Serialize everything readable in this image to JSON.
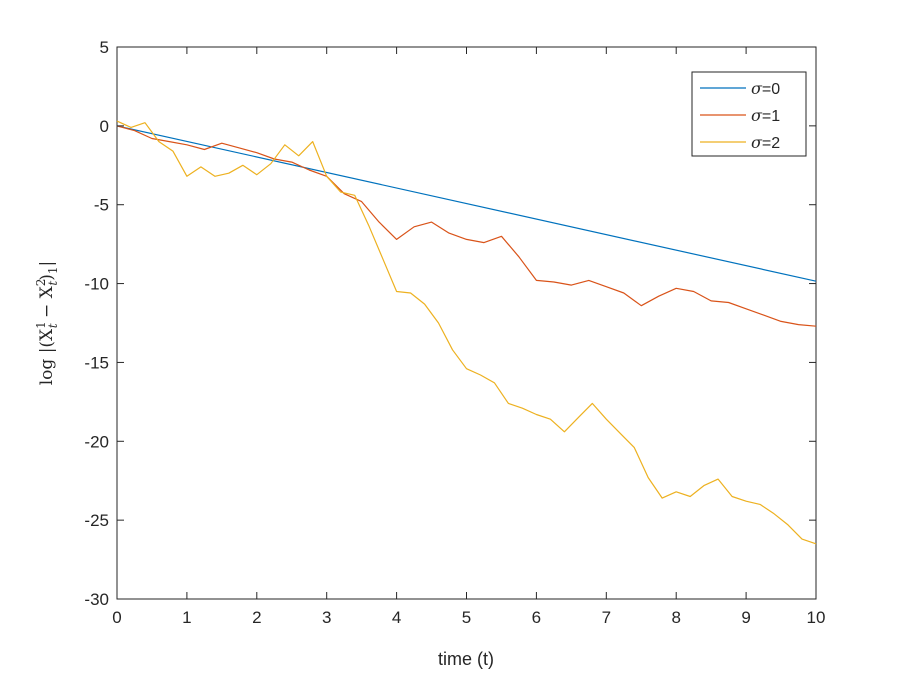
{
  "chart_data": {
    "type": "line",
    "title": "",
    "xlabel": "time (t)",
    "ylabel": {
      "prefix": "log |(X",
      "sup1": "1",
      "sub1": "t",
      "minus": " − X",
      "sup2": "2",
      "sub2": "t",
      "suffix": ")",
      "sub_end": "1",
      "bar": "|"
    },
    "xlim": [
      0,
      10
    ],
    "ylim": [
      -30,
      5
    ],
    "xticks": [
      "0",
      "1",
      "2",
      "3",
      "4",
      "5",
      "6",
      "7",
      "8",
      "9",
      "10"
    ],
    "yticks": [
      "5",
      "0",
      "-5",
      "-10",
      "-15",
      "-20",
      "-25",
      "-30"
    ],
    "grid": false,
    "legend_position": "top-right",
    "series": [
      {
        "name": "σ=0",
        "name_symbol": "σ",
        "name_value": "=0",
        "color": "#0072BD",
        "x": [
          0,
          10
        ],
        "y": [
          0,
          -9.85
        ]
      },
      {
        "name": "σ=1",
        "name_symbol": "σ",
        "name_value": "=1",
        "color": "#D95319",
        "x": [
          0,
          0.25,
          0.5,
          0.75,
          1.0,
          1.25,
          1.5,
          1.75,
          2.0,
          2.25,
          2.5,
          2.75,
          3.0,
          3.25,
          3.5,
          3.75,
          4.0,
          4.25,
          4.5,
          4.75,
          5.0,
          5.25,
          5.5,
          5.75,
          6.0,
          6.25,
          6.5,
          6.75,
          7.0,
          7.25,
          7.5,
          7.75,
          8.0,
          8.25,
          8.5,
          8.75,
          9.0,
          9.25,
          9.5,
          9.75,
          10.0
        ],
        "y": [
          0,
          -0.3,
          -0.8,
          -1.0,
          -1.2,
          -1.5,
          -1.1,
          -1.4,
          -1.7,
          -2.1,
          -2.3,
          -2.8,
          -3.2,
          -4.3,
          -4.8,
          -6.1,
          -7.2,
          -6.4,
          -6.1,
          -6.8,
          -7.2,
          -7.4,
          -7.0,
          -8.3,
          -9.8,
          -9.9,
          -10.1,
          -9.8,
          -10.2,
          -10.6,
          -11.4,
          -10.8,
          -10.3,
          -10.5,
          -11.1,
          -11.2,
          -11.6,
          -12.0,
          -12.4,
          -12.6,
          -12.7
        ]
      },
      {
        "name": "σ=2",
        "name_symbol": "σ",
        "name_value": "=2",
        "color": "#EDB120",
        "x": [
          0,
          0.2,
          0.4,
          0.6,
          0.8,
          1.0,
          1.2,
          1.4,
          1.6,
          1.8,
          2.0,
          2.2,
          2.4,
          2.6,
          2.8,
          3.0,
          3.2,
          3.4,
          3.6,
          3.8,
          4.0,
          4.2,
          4.4,
          4.6,
          4.8,
          5.0,
          5.2,
          5.4,
          5.6,
          5.8,
          6.0,
          6.2,
          6.4,
          6.6,
          6.8,
          7.0,
          7.2,
          7.4,
          7.6,
          7.8,
          8.0,
          8.2,
          8.4,
          8.6,
          8.8,
          9.0,
          9.2,
          9.4,
          9.6,
          9.8,
          10.0
        ],
        "y": [
          0.3,
          -0.1,
          0.2,
          -1.0,
          -1.6,
          -3.2,
          -2.6,
          -3.2,
          -3.0,
          -2.5,
          -3.1,
          -2.4,
          -1.2,
          -1.9,
          -1.0,
          -3.2,
          -4.2,
          -4.4,
          -6.3,
          -8.4,
          -10.5,
          -10.6,
          -11.3,
          -12.5,
          -14.2,
          -15.4,
          -15.8,
          -16.3,
          -17.6,
          -17.9,
          -18.3,
          -18.6,
          -19.4,
          -18.5,
          -17.6,
          -18.6,
          -19.5,
          -20.4,
          -22.3,
          -23.6,
          -23.2,
          -23.5,
          -22.8,
          -22.4,
          -23.5,
          -23.8,
          -24.0,
          -24.6,
          -25.3,
          -26.2,
          -26.5
        ]
      }
    ]
  }
}
